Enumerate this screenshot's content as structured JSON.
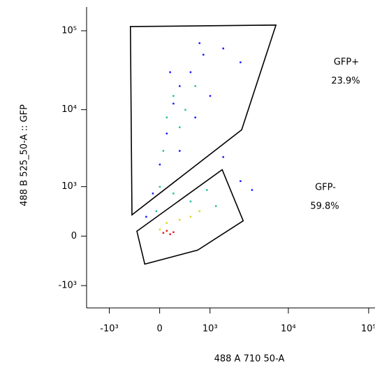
{
  "chart_data": {
    "type": "scatter",
    "xlabel": "488 A 710 50-A",
    "ylabel": "488 B 525_50-A :: GFP",
    "xscale": "biexponential",
    "yscale": "biexponential",
    "xlim": [
      -2000,
      120000
    ],
    "ylim": [
      -2000,
      200000
    ],
    "xticks": [
      {
        "value": -1000,
        "label": "-10³"
      },
      0,
      {
        "value": 1000,
        "label": "10³"
      },
      {
        "value": 10000,
        "label": "10⁴"
      },
      {
        "value": 100000,
        "label": "10⁵"
      }
    ],
    "yticks": [
      {
        "value": -1000,
        "label": "-10³"
      },
      0,
      {
        "value": 1000,
        "label": "10³"
      },
      {
        "value": 10000,
        "label": "10⁴"
      },
      {
        "value": 100000,
        "label": "10⁵"
      }
    ],
    "series": [
      {
        "color": "#1a1aff",
        "x": [
          -100,
          0,
          100,
          200,
          300,
          500,
          800,
          1500,
          2500,
          300,
          600,
          1000,
          1500,
          2500,
          3500,
          -200,
          150,
          700
        ],
        "y": [
          800,
          2000,
          5000,
          12000,
          20000,
          30000,
          50000,
          60000,
          40000,
          3000,
          8000,
          15000,
          2500,
          1200,
          900,
          300,
          30000,
          70000
        ]
      },
      {
        "color": "#20c0a0",
        "x": [
          0,
          50,
          100,
          200,
          300,
          400,
          600,
          200,
          500,
          900,
          1200,
          -50
        ],
        "y": [
          1000,
          3000,
          8000,
          15000,
          6000,
          10000,
          20000,
          800,
          600,
          900,
          500,
          400
        ]
      },
      {
        "color": "#d8d820",
        "x": [
          100,
          300,
          500,
          700,
          0
        ],
        "y": [
          200,
          250,
          300,
          400,
          100
        ]
      },
      {
        "color": "#e02020",
        "x": [
          50,
          100,
          150,
          200
        ],
        "y": [
          50,
          80,
          30,
          60
        ]
      }
    ],
    "gates": [
      {
        "label": "GFP+",
        "stat": "23.9%",
        "x": [
          -470,
          7000,
          2600,
          -440
        ],
        "y": [
          113000,
          118000,
          5550,
          330
        ]
      },
      {
        "label": "GFP-",
        "stat": "59.8%",
        "x": [
          -350,
          1460,
          2720,
          660,
          -220
        ],
        "y": [
          72,
          1700,
          230,
          -210,
          -455
        ]
      }
    ]
  }
}
